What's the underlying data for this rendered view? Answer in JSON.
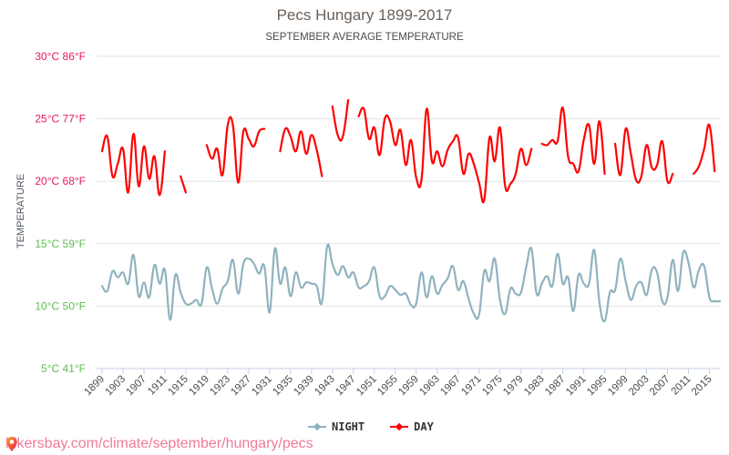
{
  "chart_data": {
    "type": "line",
    "title": "Pecs Hungary 1899-2017",
    "subtitle": "SEPTEMBER AVERAGE TEMPERATURE",
    "ylabel": "TEMPERATURE",
    "xlabel": "",
    "ylim": [
      5,
      30
    ],
    "xlim": [
      1899,
      2017
    ],
    "grid": true,
    "legend_position": "bottom",
    "y_ticks": [
      {
        "value": 30,
        "label": "30°C 86°F",
        "color": "#e8175d"
      },
      {
        "value": 25,
        "label": "25°C 77°F",
        "color": "#e8175d"
      },
      {
        "value": 20,
        "label": "20°C 68°F",
        "color": "#e8175d"
      },
      {
        "value": 15,
        "label": "15°C 59°F",
        "color": "#5cbf4e"
      },
      {
        "value": 10,
        "label": "10°C 50°F",
        "color": "#5cbf4e"
      },
      {
        "value": 5,
        "label": "5°C 41°F",
        "color": "#5cbf4e"
      }
    ],
    "x_ticks": [
      "1899",
      "1903",
      "1907",
      "1911",
      "1915",
      "1919",
      "1923",
      "1927",
      "1931",
      "1935",
      "1939",
      "1943",
      "1947",
      "1951",
      "1955",
      "1959",
      "1963",
      "1967",
      "1971",
      "1975",
      "1979",
      "1983",
      "1987",
      "1991",
      "1995",
      "1999",
      "2003",
      "2007",
      "2011",
      "2015"
    ],
    "x_start": 1899,
    "series": [
      {
        "name": "NIGHT",
        "color": "#8fb3bf",
        "values": [
          11.6,
          11.2,
          12.8,
          12.3,
          12.7,
          11.8,
          14.1,
          10.8,
          11.9,
          10.7,
          13.3,
          11.8,
          12.9,
          8.9,
          12.5,
          11.1,
          10.2,
          10.2,
          10.5,
          10.2,
          13.1,
          11.4,
          10.2,
          11.4,
          12.0,
          13.7,
          11.0,
          13.4,
          13.8,
          13.4,
          12.6,
          13.2,
          9.5,
          14.6,
          11.8,
          13.1,
          10.8,
          12.7,
          11.5,
          11.9,
          11.8,
          11.6,
          10.3,
          14.8,
          13.4,
          12.5,
          13.2,
          12.3,
          12.7,
          11.5,
          11.6,
          12.0,
          13.1,
          10.8,
          10.8,
          11.6,
          11.3,
          10.9,
          11.0,
          10.1,
          10.2,
          12.7,
          10.7,
          12.4,
          11.0,
          11.7,
          12.2,
          13.2,
          11.3,
          12.0,
          10.6,
          9.4,
          9.3,
          12.8,
          12.0,
          13.8,
          10.5,
          9.4,
          11.4,
          11.0,
          11.1,
          13.1,
          14.6,
          11.0,
          11.8,
          12.4,
          11.6,
          14.2,
          11.8,
          12.3,
          9.6,
          12.5,
          11.8,
          11.8,
          14.5,
          10.3,
          8.8,
          11.1,
          11.3,
          13.8,
          12.0,
          10.5,
          11.6,
          11.9,
          10.9,
          12.9,
          12.7,
          10.4,
          10.7,
          13.7,
          11.2,
          14.3,
          13.5,
          11.5,
          12.9,
          13.2,
          10.7,
          10.4,
          10.4
        ],
        "gaps": []
      },
      {
        "name": "DAY",
        "color": "#ff0000",
        "values": [
          22.4,
          23.6,
          20.4,
          21.4,
          22.6,
          19.1,
          23.8,
          19.6,
          22.8,
          20.2,
          22.0,
          18.9,
          22.4,
          null,
          null,
          20.4,
          19.1,
          null,
          null,
          null,
          22.9,
          21.8,
          22.6,
          20.5,
          24.5,
          24.5,
          19.9,
          24.0,
          23.4,
          22.8,
          24.0,
          24.2,
          null,
          null,
          22.4,
          24.2,
          23.6,
          22.4,
          24.0,
          22.2,
          23.7,
          22.5,
          20.4,
          null,
          26.0,
          23.7,
          23.6,
          26.5,
          null,
          25.2,
          25.8,
          23.4,
          24.3,
          22.1,
          25.0,
          24.8,
          22.9,
          24.1,
          21.3,
          23.3,
          20.3,
          20.1,
          25.8,
          21.6,
          22.4,
          21.2,
          22.5,
          23.2,
          23.5,
          20.6,
          22.2,
          21.4,
          19.9,
          18.5,
          23.5,
          21.6,
          24.3,
          19.6,
          19.8,
          20.6,
          22.6,
          21.3,
          22.6,
          null,
          23.0,
          22.9,
          23.3,
          23.2,
          25.9,
          22.0,
          21.4,
          20.8,
          23.3,
          24.5,
          21.4,
          24.8,
          20.6,
          null,
          23.0,
          20.5,
          24.2,
          22.2,
          20.1,
          20.4,
          22.9,
          21.1,
          21.3,
          23.2,
          20.0,
          20.6,
          null,
          null,
          null,
          20.6,
          21.2,
          22.6,
          24.5,
          20.8
        ]
      }
    ]
  },
  "legend": {
    "night_label": "NIGHT",
    "day_label": "DAY"
  },
  "footer": {
    "url_text": "hikersbay.com/climate/september/hungary/pecs",
    "icon": "map-pin-icon"
  }
}
